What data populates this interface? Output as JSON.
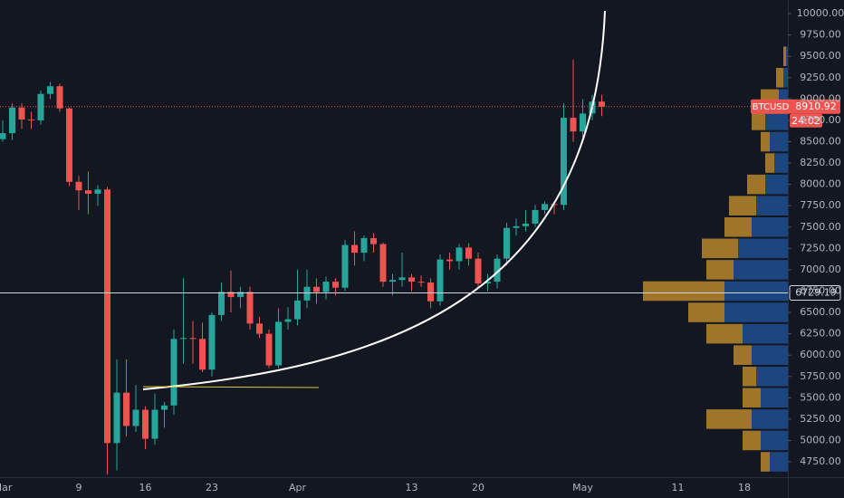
{
  "chart_data": {
    "type": "candlestick",
    "categories": [
      "Mar",
      null,
      null,
      null,
      null,
      null,
      null,
      null,
      "9",
      null,
      null,
      null,
      null,
      null,
      null,
      "16",
      null,
      null,
      null,
      null,
      null,
      null,
      "23",
      null,
      null,
      null,
      null,
      null,
      null,
      null,
      null,
      "Apr",
      null,
      null,
      null,
      null,
      null,
      null,
      null,
      null,
      null,
      null,
      null,
      "13",
      null,
      null,
      null,
      null,
      null,
      null,
      "20",
      null,
      null,
      null,
      null,
      null,
      null,
      null,
      null,
      null,
      null,
      "May",
      null,
      null,
      null,
      null,
      null,
      null,
      null,
      null,
      null,
      "11",
      null,
      null,
      null,
      null,
      null,
      null,
      "18",
      null,
      null,
      null
    ],
    "series": [
      {
        "name": "BTCUSD",
        "up_color": "#26a69a",
        "down_color": "#ef5350",
        "open": [
          8530,
          8600,
          8900,
          8760,
          8750,
          9060,
          9150,
          8890,
          8030,
          7930,
          7890,
          7940,
          4970,
          5560,
          5170,
          5360,
          5020,
          5360,
          5410,
          6190,
          6200,
          6190,
          5830,
          6470,
          6740,
          6680,
          6740,
          6370,
          6250,
          5880,
          6390,
          6420,
          6640,
          6800,
          6740,
          6860,
          6790,
          7290,
          7200,
          7370,
          7300,
          6860,
          6880,
          6910,
          6860,
          6850,
          6630,
          7120,
          7100,
          7260,
          7130,
          6840,
          6860,
          7130,
          7490,
          7510,
          7540,
          7700,
          7770,
          7760,
          8780,
          8620,
          8830,
          8970
        ],
        "high": [
          8750,
          8950,
          8950,
          8850,
          9100,
          9200,
          9180,
          8900,
          8100,
          8150,
          7990,
          7970,
          5950,
          5950,
          5650,
          5400,
          5550,
          5450,
          6300,
          6900,
          6400,
          6380,
          6500,
          6850,
          6990,
          6800,
          6800,
          6450,
          6300,
          6550,
          6560,
          7000,
          7000,
          6900,
          6920,
          6900,
          7350,
          7450,
          7400,
          7430,
          7320,
          6950,
          7200,
          6950,
          6930,
          6900,
          7180,
          7200,
          7300,
          7310,
          7200,
          6950,
          7180,
          7550,
          7600,
          7700,
          7760,
          7800,
          7800,
          8950,
          9460,
          9000,
          9050,
          9050
        ],
        "low": [
          8500,
          8520,
          8650,
          8650,
          8700,
          9000,
          8850,
          7980,
          7700,
          7650,
          7750,
          4600,
          4650,
          5050,
          5100,
          4900,
          4950,
          5150,
          5300,
          5900,
          5900,
          5800,
          5750,
          6400,
          6500,
          6550,
          6300,
          6200,
          5850,
          5850,
          6300,
          6350,
          6550,
          6600,
          6650,
          6700,
          6750,
          7050,
          7100,
          7200,
          6800,
          6700,
          6800,
          6750,
          6800,
          6550,
          6580,
          7000,
          7000,
          7050,
          6800,
          6750,
          6780,
          7050,
          7400,
          7450,
          7500,
          7650,
          7650,
          7700,
          8500,
          8550,
          8750,
          8800
        ],
        "close": [
          8600,
          8900,
          8760,
          8750,
          9060,
          9150,
          8890,
          8030,
          7930,
          7890,
          7940,
          4970,
          5560,
          5170,
          5360,
          5020,
          5360,
          5410,
          6190,
          6200,
          6190,
          5830,
          6470,
          6740,
          6680,
          6740,
          6370,
          6250,
          5880,
          6390,
          6420,
          6640,
          6800,
          6740,
          6860,
          6790,
          7290,
          7200,
          7370,
          7300,
          6860,
          6880,
          6910,
          6860,
          6850,
          6630,
          7120,
          7100,
          7260,
          7130,
          6840,
          6860,
          7130,
          7490,
          7510,
          7540,
          7700,
          7770,
          7760,
          8780,
          8620,
          8830,
          8970,
          8910.92
        ]
      }
    ],
    "ylim": [
      4570,
      10160
    ],
    "yticks": [
      {
        "value": 4750,
        "label": "4750.00"
      },
      {
        "value": 5000,
        "label": "5000.00"
      },
      {
        "value": 5250,
        "label": "5250.00"
      },
      {
        "value": 5500,
        "label": "5500.00"
      },
      {
        "value": 5750,
        "label": "5750.00"
      },
      {
        "value": 6000,
        "label": "6000.00"
      },
      {
        "value": 6250,
        "label": "6250.00"
      },
      {
        "value": 6500,
        "label": "6500.00"
      },
      {
        "value": 6750,
        "label": "6750.00"
      },
      {
        "value": 7000,
        "label": "7000.00"
      },
      {
        "value": 7250,
        "label": "7250.00"
      },
      {
        "value": 7500,
        "label": "7500.00"
      },
      {
        "value": 7750,
        "label": "7750.00"
      },
      {
        "value": 8000,
        "label": "8000.00"
      },
      {
        "value": 8250,
        "label": "8250.00"
      },
      {
        "value": 8500,
        "label": "8500.00"
      },
      {
        "value": 8750,
        "label": "8750.00"
      },
      {
        "value": 9000,
        "label": "9000.00"
      },
      {
        "value": 9250,
        "label": "9250.00"
      },
      {
        "value": 9500,
        "label": "9500.00"
      },
      {
        "value": 9750,
        "label": "9750.00"
      },
      {
        "value": 10000,
        "label": "10000.00"
      }
    ],
    "last_price": {
      "symbol": "BTCUSD",
      "value": 8910.92,
      "countdown": "24:02",
      "color": "#ef5350"
    },
    "level_line": {
      "value": 6729.19,
      "color": "#d1d4dc"
    },
    "volume_profile": {
      "levels": [
        4750,
        5000,
        5250,
        5500,
        5750,
        6000,
        6250,
        6500,
        6750,
        7000,
        7250,
        7500,
        7750,
        8000,
        8250,
        8500,
        8750,
        9000,
        9250,
        9500
      ],
      "series": [
        {
          "color": "#1e4f8f",
          "values": [
            20,
            30,
            40,
            30,
            35,
            40,
            50,
            70,
            70,
            60,
            55,
            40,
            35,
            25,
            15,
            20,
            25,
            10,
            5,
            2
          ]
        },
        {
          "color": "#b8872a",
          "values": [
            10,
            20,
            50,
            20,
            15,
            20,
            40,
            40,
            90,
            30,
            40,
            30,
            30,
            20,
            10,
            10,
            15,
            20,
            8,
            3
          ]
        }
      ]
    }
  }
}
